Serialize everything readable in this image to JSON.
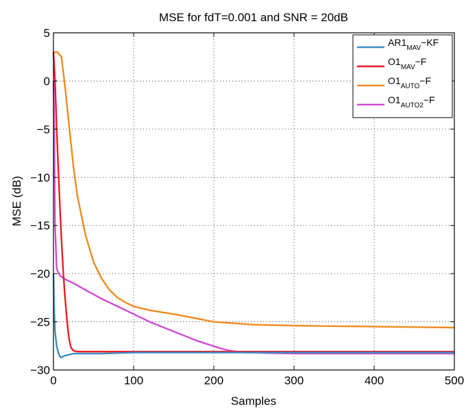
{
  "chart_data": {
    "type": "line",
    "title": "MSE for fdT=0.001 and SNR = 20dB",
    "xlabel": "Samples",
    "ylabel": "MSE (dB)",
    "xlim": [
      0,
      500
    ],
    "ylim": [
      -30,
      5
    ],
    "xticks": [
      0,
      100,
      200,
      300,
      400,
      500
    ],
    "yticks": [
      5,
      0,
      -5,
      -10,
      -15,
      -20,
      -25,
      -30
    ],
    "grid": true,
    "legend_position": "top-right",
    "series": [
      {
        "name": "AR1",
        "name_sub": "MAV",
        "name_suffix": "−KF",
        "color": "#3a8ec2",
        "x": [
          0,
          1,
          2,
          4,
          6,
          8,
          10,
          12,
          15,
          20,
          25,
          30,
          40,
          60,
          100,
          150,
          200,
          300,
          400,
          500
        ],
        "y": [
          -20.0,
          -24.0,
          -26.0,
          -27.5,
          -28.2,
          -28.6,
          -28.7,
          -28.6,
          -28.5,
          -28.4,
          -28.3,
          -28.3,
          -28.3,
          -28.3,
          -28.2,
          -28.2,
          -28.2,
          -28.2,
          -28.2,
          -28.2
        ]
      },
      {
        "name": "O1",
        "name_sub": "MAV",
        "name_suffix": "−F",
        "color": "#ee1c24",
        "x": [
          0,
          2,
          4,
          6,
          8,
          10,
          12,
          14,
          16,
          18,
          20,
          22,
          25,
          30,
          40,
          60,
          100,
          150,
          200,
          300,
          400,
          500
        ],
        "y": [
          3.0,
          0.0,
          -5.0,
          -9.0,
          -13.0,
          -16.5,
          -19.5,
          -22.0,
          -24.0,
          -25.8,
          -27.0,
          -27.7,
          -28.0,
          -28.1,
          -28.1,
          -28.1,
          -28.1,
          -28.1,
          -28.1,
          -28.1,
          -28.1,
          -28.1
        ]
      },
      {
        "name": "O1",
        "name_sub": "AUTO",
        "name_suffix": "−F",
        "color": "#f08a1e",
        "x": [
          0,
          5,
          10,
          15,
          20,
          25,
          30,
          40,
          50,
          60,
          70,
          80,
          90,
          100,
          120,
          150,
          200,
          250,
          300,
          400,
          500
        ],
        "y": [
          3.0,
          3.0,
          2.5,
          -1.0,
          -5.0,
          -9.0,
          -12.0,
          -16.0,
          -18.8,
          -20.5,
          -21.7,
          -22.5,
          -23.0,
          -23.4,
          -23.8,
          -24.2,
          -25.0,
          -25.3,
          -25.4,
          -25.5,
          -25.6
        ]
      },
      {
        "name": "O1",
        "name_sub": "AUTO2",
        "name_suffix": "−F",
        "color": "#d14ad4",
        "x": [
          0,
          1,
          2,
          4,
          8,
          15,
          25,
          40,
          60,
          80,
          100,
          120,
          150,
          180,
          210,
          220,
          240,
          300,
          400,
          500
        ],
        "y": [
          0.0,
          -5.0,
          -15.0,
          -19.5,
          -20.2,
          -20.6,
          -21.0,
          -21.7,
          -22.6,
          -23.4,
          -24.2,
          -25.0,
          -26.0,
          -27.0,
          -27.8,
          -28.0,
          -28.2,
          -28.3,
          -28.3,
          -28.3
        ]
      }
    ]
  }
}
